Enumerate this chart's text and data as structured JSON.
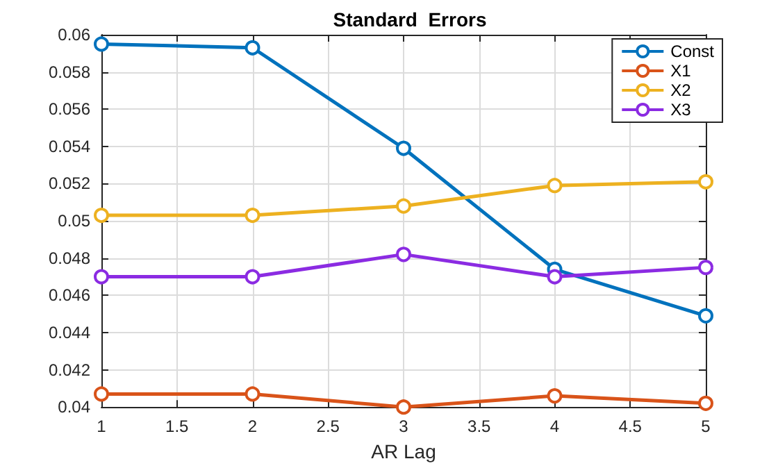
{
  "chart_data": {
    "type": "line",
    "title": "Standard  Errors",
    "xlabel": "AR Lag",
    "x": [
      1,
      2,
      3,
      4,
      5
    ],
    "series": [
      {
        "name": "Const",
        "color": "#0072bd",
        "values": [
          0.0595,
          0.0593,
          0.0539,
          0.0474,
          0.0449
        ]
      },
      {
        "name": "X1",
        "color": "#d95319",
        "values": [
          0.0407,
          0.0407,
          0.04,
          0.0406,
          0.0402
        ]
      },
      {
        "name": "X2",
        "color": "#edb120",
        "values": [
          0.0503,
          0.0503,
          0.0508,
          0.0519,
          0.0521
        ]
      },
      {
        "name": "X3",
        "color": "#8b2be2",
        "values": [
          0.047,
          0.047,
          0.0482,
          0.047,
          0.0475
        ]
      }
    ],
    "xlim": [
      1,
      5
    ],
    "xticks": [
      1,
      1.5,
      2,
      2.5,
      3,
      3.5,
      4,
      4.5,
      5
    ],
    "ylim": [
      0.04,
      0.06
    ],
    "yticks": [
      0.04,
      0.042,
      0.044,
      0.046,
      0.048,
      0.05,
      0.052,
      0.054,
      0.056,
      0.058,
      0.06
    ],
    "grid": true,
    "legend": "top right",
    "marker": "circle",
    "line_style": "solid"
  }
}
